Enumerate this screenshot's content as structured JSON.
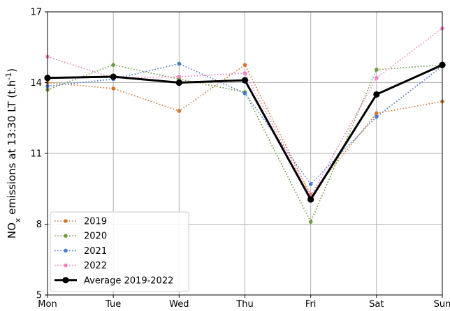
{
  "chart_data": {
    "type": "line",
    "categories": [
      "Mon",
      "Tue",
      "Wed",
      "Thu",
      "Fri",
      "Sat",
      "Sun"
    ],
    "ylabel": "NO_x emissions at 13:30 LT (t.h^-1)",
    "ylim": [
      5,
      17
    ],
    "yticks": [
      5,
      8,
      11,
      14,
      17
    ],
    "grid": true,
    "legend": "bottom-left",
    "series": [
      {
        "name": "2019",
        "color": "#d2772f",
        "style": "dotted",
        "values": [
          14.0,
          13.75,
          12.8,
          14.75,
          9.25,
          12.7,
          13.2
        ]
      },
      {
        "name": "2020",
        "color": "#6e9a3a",
        "style": "dotted",
        "values": [
          13.7,
          14.75,
          14.15,
          13.6,
          8.1,
          14.55,
          14.75
        ]
      },
      {
        "name": "2021",
        "color": "#4a78d6",
        "style": "dotted",
        "values": [
          13.85,
          14.15,
          14.8,
          13.55,
          9.7,
          12.55,
          14.7
        ]
      },
      {
        "name": "2022",
        "color": "#f27fc2",
        "style": "dotted",
        "values": [
          15.1,
          14.2,
          14.25,
          14.4,
          9.2,
          14.2,
          16.3
        ]
      },
      {
        "name": "Average 2019-2022",
        "color": "#000000",
        "style": "solid",
        "values": [
          14.2,
          14.25,
          14.0,
          14.1,
          9.05,
          13.5,
          14.75
        ]
      }
    ]
  }
}
